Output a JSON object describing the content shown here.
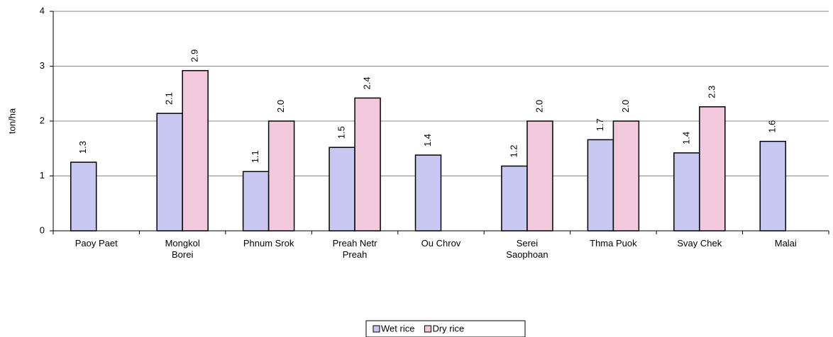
{
  "chart_data": {
    "type": "bar",
    "y_label": "ton/ha",
    "categories": [
      "Paoy Paet",
      "Mongkol\nBorei",
      "Phnum Srok",
      "Preah Netr\nPreah",
      "Ou Chrov",
      "Serei\nSaophoan",
      "Thma Puok",
      "Svay Chek",
      "Malai"
    ],
    "series": [
      {
        "name": "Wet rice",
        "color": "#c8c8f2",
        "values": [
          1.25,
          2.14,
          1.08,
          1.52,
          1.38,
          1.18,
          1.66,
          1.42,
          1.63
        ],
        "value_labels": [
          "1.3",
          "2.1",
          "1.1",
          "1.5",
          "1.4",
          "1.2",
          "1.7",
          "1.4",
          "1.6"
        ]
      },
      {
        "name": "Dry rice",
        "color": "#f2c8dc",
        "values": [
          null,
          2.92,
          2.0,
          2.42,
          null,
          2.0,
          2.0,
          2.26,
          null
        ],
        "value_labels": [
          null,
          "2.9",
          "2.0",
          "2.4",
          null,
          "2.0",
          "2.0",
          "2.3",
          null
        ]
      }
    ],
    "ylim": [
      0,
      4
    ],
    "yticks": [
      0,
      1,
      2,
      3,
      4
    ],
    "grid": true,
    "legend": "bottom"
  }
}
